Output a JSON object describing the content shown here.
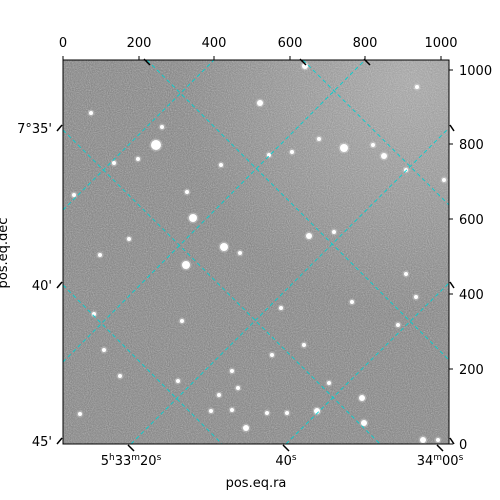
{
  "image": {
    "colormap": "gray",
    "background_color": "#7a7a7a",
    "grid_color": "#00d0d0"
  },
  "axes": {
    "pixel_x_ticks": [
      "0",
      "200",
      "400",
      "600",
      "800",
      "1000"
    ],
    "pixel_y_ticks": [
      "0",
      "200",
      "400",
      "600",
      "800",
      "1000"
    ],
    "ra_label": "pos.eq.ra",
    "dec_label": "pos.eq.dec",
    "ra_ticks": [
      {
        "h": "5",
        "m": "33",
        "s": "20",
        "text": "5h33m20s"
      },
      {
        "s": "40",
        "text": "40s"
      },
      {
        "m": "34",
        "s": "00",
        "text": "34m00s"
      }
    ],
    "dec_ticks": [
      "7°35'",
      "40'",
      "45'"
    ]
  }
}
